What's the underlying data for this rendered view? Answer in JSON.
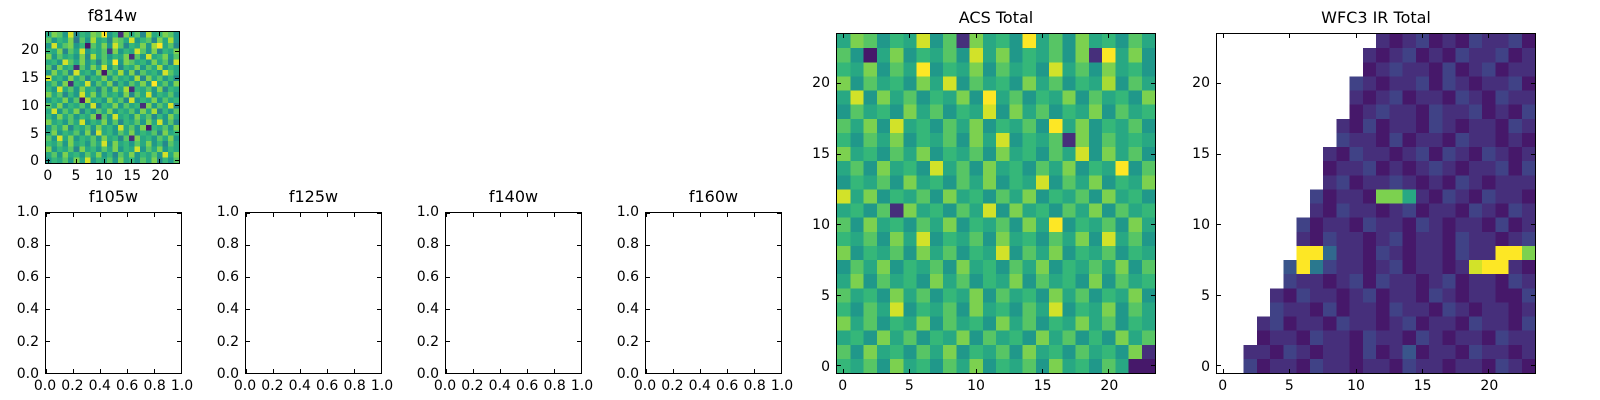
{
  "figure": {
    "background": "#ffffff",
    "axes_color": "#000000",
    "text_color": "#000000",
    "palette": {
      "viridis": [
        "#440154",
        "#482878",
        "#3e4989",
        "#31688e",
        "#26828e",
        "#1f9e89",
        "#35b779",
        "#6ece58",
        "#b5de2b",
        "#fde725"
      ]
    }
  },
  "chart_data": [
    {
      "id": "f814w",
      "type": "heatmap",
      "title": "f814w",
      "colormap": "viridis",
      "xlim": [
        -0.5,
        23.5
      ],
      "ylim": [
        -0.5,
        23.5
      ],
      "xticks": [
        0,
        5,
        10,
        15,
        20
      ],
      "xtick_labels": [
        "0",
        "5",
        "10",
        "15",
        "20"
      ],
      "yticks": [
        0,
        5,
        10,
        15,
        20
      ],
      "ytick_labels": [
        "0",
        "5",
        "10",
        "15",
        "20"
      ],
      "grid_encoding": "rows top-to-bottom; each char hex 0-f = normalized intensity 0-1 on viridis; '.' = missing (white)",
      "grid": [
        "9cb8e7a9cbf8a2c9b7d9acb8",
        "b8a9c6b8d9a7cb9e8ab7c9d8",
        "8e9bc8a1b9c8eb7a9c8df9b7",
        "a9c7b9e8a9b3c8a9eb8c7a9c",
        "c8b9a8c7d9b8a9c2b8e9ac8b",
        "9a8eb9c8a7b9f8cb9a8c9b7e",
        "b7c9a2b8c9e8b7a9c8b9d8a9",
        "8c9b7e9a8c1b9d8c7b9a8eb9",
        "e9a8c9b7a9c8b9a8d7c9b8a7",
        "9b8c2a9e8b9c7a8b9c8f9b8c",
        "a8e9b8c9a7b8c9d2a9b8c7a9",
        "c9b7a8e9c8b9a8c7b9e8a9b8",
        "8a9c8b1d9a8c9b7e8a9c8b9a",
        "b9c8a9b8e7a9c8b9a2c8b9e7",
        "9e8b9c7a8b9c8a9b8c9d7a8b",
        "a8c9b8a9c2b8e9a8c9b7a8c9",
        "c9a8b9e8a9c8b7a9b8c9e8b7",
        "8b9c7a9b8c9a8e9b8c1a9b8c",
        "9c8a9b8c7e9a8b9c8a9b7c9a",
        "b8e9c8a9b8c9a7b2c9a8b9c8",
        "a9b8c9a8b9e8c9a8b9c8a7b9",
        "c8a9b7c9a8b9c8a9e8b9c8a9",
        "9b8c9a8b9c8a7b9c8a9b8e9c",
        "8a9b8c9e8a9b8c9a8b9c7a8b"
      ]
    },
    {
      "id": "f105w",
      "type": "empty",
      "title": "f105w",
      "xlim": [
        0,
        1
      ],
      "ylim": [
        0,
        1
      ],
      "xticks": [
        0,
        0.2,
        0.4,
        0.6,
        0.8,
        1.0
      ],
      "xtick_labels": [
        "0.0",
        "0.2",
        "0.4",
        "0.6",
        "0.8",
        "1.0"
      ],
      "yticks": [
        0,
        0.2,
        0.4,
        0.6,
        0.8,
        1.0
      ],
      "ytick_labels": [
        "0.0",
        "0.2",
        "0.4",
        "0.6",
        "0.8",
        "1.0"
      ]
    },
    {
      "id": "f125w",
      "type": "empty",
      "title": "f125w",
      "xlim": [
        0,
        1
      ],
      "ylim": [
        0,
        1
      ],
      "xticks": [
        0,
        0.2,
        0.4,
        0.6,
        0.8,
        1.0
      ],
      "xtick_labels": [
        "0.0",
        "0.2",
        "0.4",
        "0.6",
        "0.8",
        "1.0"
      ],
      "yticks": [
        0,
        0.2,
        0.4,
        0.6,
        0.8,
        1.0
      ],
      "ytick_labels": [
        "0.0",
        "0.2",
        "0.4",
        "0.6",
        "0.8",
        "1.0"
      ]
    },
    {
      "id": "f140w",
      "type": "empty",
      "title": "f140w",
      "xlim": [
        0,
        1
      ],
      "ylim": [
        0,
        1
      ],
      "xticks": [
        0,
        0.2,
        0.4,
        0.6,
        0.8,
        1.0
      ],
      "xtick_labels": [
        "0.0",
        "0.2",
        "0.4",
        "0.6",
        "0.8",
        "1.0"
      ],
      "yticks": [
        0,
        0.2,
        0.4,
        0.6,
        0.8,
        1.0
      ],
      "ytick_labels": [
        "0.0",
        "0.2",
        "0.4",
        "0.6",
        "0.8",
        "1.0"
      ]
    },
    {
      "id": "f160w",
      "type": "empty",
      "title": "f160w",
      "xlim": [
        0,
        1
      ],
      "ylim": [
        0,
        1
      ],
      "xticks": [
        0,
        0.2,
        0.4,
        0.6,
        0.8,
        1.0
      ],
      "xtick_labels": [
        "0.0",
        "0.2",
        "0.4",
        "0.6",
        "0.8",
        "1.0"
      ],
      "yticks": [
        0,
        0.2,
        0.4,
        0.6,
        0.8,
        1.0
      ],
      "ytick_labels": [
        "0.0",
        "0.2",
        "0.4",
        "0.6",
        "0.8",
        "1.0"
      ]
    },
    {
      "id": "acs_total",
      "type": "heatmap",
      "title": "ACS Total",
      "colormap": "viridis",
      "xlim": [
        -0.5,
        23.5
      ],
      "ylim": [
        -0.5,
        23.5
      ],
      "xticks": [
        0,
        5,
        10,
        15,
        20
      ],
      "xtick_labels": [
        "0",
        "5",
        "10",
        "15",
        "20"
      ],
      "yticks": [
        0,
        5,
        10,
        15,
        20
      ],
      "ytick_labels": [
        "0",
        "5",
        "10",
        "15",
        "20"
      ],
      "grid_encoding": "rows top-to-bottom; each char hex 0-f = normalized intensity 0-1 on viridis; '.' = missing (white)",
      "grid": [
        "9cb8a9e8b2c9a8f9b8c9a8b9",
        "b819c8a9b8e9c8a9b8c2f9c8",
        "a9c8b9f8a9c8b9a8e9b8c9a8",
        "c8b9a8c9e8b9a8c9b8a9d8b9",
        "9e8c9b8a9c8f9b8a9c8b9a8c",
        "8b9a8c9b8a9e8c9b8a9c8b9a",
        "b9c8e9a8b9c8a9b8f9c8a9b8",
        "a8b9c8a9b8c9e8a9b2c8b9a9",
        "c9a8b9c8a9b8c9a8b9e8c9b8",
        "9b8c9a8e9b8c9a8b9c8a9f8b",
        "8a9b8c9a8b9c8a9e8b9c8a9c",
        "e9c8a9b8c9a8b9c8a9b8c9a8",
        "9a8b2c9a8b9e8c9a8b9c8b9a",
        "b8c9a8b9c8a9b8c9f8a9b8c9",
        "a9b8c9e8a9b8c9a8b9c8e9b8",
        "c8a9b8c9b8a9e8b9c8a9b8a9",
        "8b9c8a9b8c9a8b9c8a9b9c8b",
        "9c8b9a8c9b8a9c8b9a8c8b9a",
        "b9a8c9b8a9c8b9a8c9b8a9c8",
        "a8b9e8a9b8c9a8b9e8a9c8b9",
        "c9b8a9c8b9a8c9b8a9c9b8a9",
        "9a8c9b8a9c8b9a8c9b8a8c9b",
        "b8c9a8b9c8a9b8c9a8b9a8c2",
        "a9b8c9a8b9c8a9b8c9a8b911"
      ]
    },
    {
      "id": "wfc3_ir_total",
      "type": "heatmap",
      "title": "WFC3 IR Total",
      "colormap": "viridis",
      "xlim": [
        -0.5,
        23.5
      ],
      "ylim": [
        -0.5,
        23.5
      ],
      "xticks": [
        0,
        5,
        10,
        15,
        20
      ],
      "xtick_labels": [
        "0",
        "5",
        "10",
        "15",
        "20"
      ],
      "yticks": [
        0,
        5,
        10,
        15,
        20
      ],
      "ytick_labels": [
        "0",
        "5",
        "10",
        "15",
        "20"
      ],
      "grid_encoding": "rows top-to-bottom; each char hex 0-f = normalized intensity 0-1 on viridis; '.' = missing (white)",
      "grid": [
        "............212312132231",
        "...........2123121322312",
        "...........1232213123122",
        "..........32122313212231",
        "..........21231221321322",
        "..........12322132231213",
        ".........213122132122132",
        ".........322131221322121",
        "........2132212313213212",
        "........1223121232122313",
        "........2312232121321222",
        ".......31221cc9213213221",
        ".......21322123122132132",
        "......312213221321221312",
        "......213221231221322123",
        "......ff5221321221322ffc",
        ".....4f632212312212eff21",
        ".....3221231322123122132",
        "....21322123122132122113",
        "....32213122132213212212",
        "...231221322123122132213",
        "...122132213221321221322",
        "..2213212213124122132212",
        "..3122132212213221221321"
      ]
    }
  ]
}
